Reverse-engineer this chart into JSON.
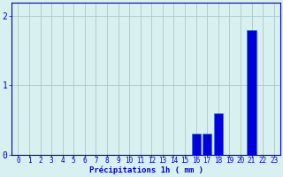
{
  "hours": [
    0,
    1,
    2,
    3,
    4,
    5,
    6,
    7,
    8,
    9,
    10,
    11,
    12,
    13,
    14,
    15,
    16,
    17,
    18,
    19,
    20,
    21,
    22,
    23
  ],
  "values": [
    0,
    0,
    0,
    0,
    0,
    0,
    0,
    0,
    0,
    0,
    0,
    0,
    0,
    0,
    0,
    0,
    0.3,
    0.3,
    0.6,
    0,
    0,
    1.8,
    0,
    0
  ],
  "bar_color": "#0000dd",
  "bar_edge_color": "#2266ff",
  "background_color": "#d8f0f0",
  "grid_color": "#aac8c8",
  "axis_color": "#0000aa",
  "text_color": "#0000cc",
  "xlabel": "Précipitations 1h ( mm )",
  "xlabel_fontsize": 6.5,
  "tick_fontsize": 5.5,
  "ytick_fontsize": 7,
  "ylim": [
    0,
    2.2
  ],
  "yticks": [
    0,
    1,
    2
  ],
  "figsize": [
    3.2,
    2.0
  ],
  "dpi": 100
}
